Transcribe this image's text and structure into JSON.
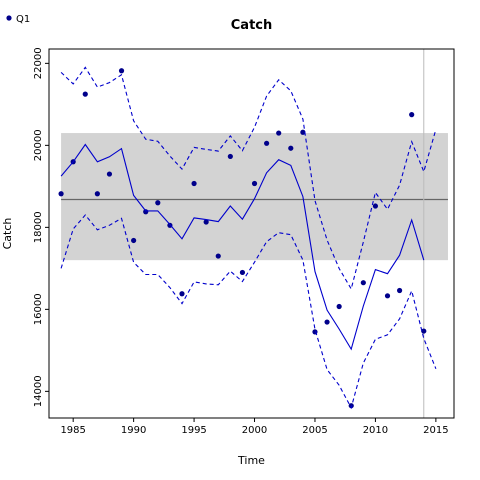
{
  "chart_data": {
    "type": "line",
    "title": "Catch",
    "xlabel": "Time",
    "ylabel": "Catch",
    "xlim": [
      1983,
      2016.5
    ],
    "ylim": [
      13350,
      22350
    ],
    "x_ticks": [
      1985,
      1990,
      1995,
      2000,
      2005,
      2010,
      2015
    ],
    "y_ticks": [
      14000,
      16000,
      18000,
      20000,
      22000
    ],
    "grid": false,
    "legend": {
      "position": "top-left",
      "entries": [
        "Q1"
      ]
    },
    "colors": {
      "series": "#0000cc",
      "points": "#00008b",
      "band": "#d3d3d3",
      "mean_line": "#666666",
      "vline": "#bbbbbb"
    },
    "band": {
      "x0": 1984,
      "x1": 2016,
      "lower": 17200,
      "upper": 20300
    },
    "mean_line": {
      "x0": 1984,
      "x1": 2016,
      "y": 18680
    },
    "vline_x": 2014,
    "series": [
      {
        "name": "Q1",
        "style": "points",
        "x": [
          1984,
          1985,
          1986,
          1987,
          1988,
          1989,
          1990,
          1991,
          1992,
          1993,
          1994,
          1995,
          1996,
          1997,
          1998,
          1999,
          2000,
          2001,
          2002,
          2003,
          2004,
          2005,
          2006,
          2007,
          2008,
          2009,
          2010,
          2011,
          2012,
          2013,
          2014
        ],
        "y": [
          18820,
          19600,
          21250,
          18820,
          19300,
          21820,
          17680,
          18380,
          18600,
          18050,
          16380,
          19070,
          18130,
          17300,
          19730,
          16900,
          19070,
          20050,
          20300,
          19930,
          20320,
          15450,
          15690,
          16070,
          13650,
          16650,
          18520,
          16330,
          16460,
          20750,
          15470
        ]
      },
      {
        "style": "solid",
        "x": [
          1984,
          1985,
          1986,
          1987,
          1988,
          1989,
          1990,
          1991,
          1992,
          1993,
          1994,
          1995,
          1996,
          1997,
          1998,
          1999,
          2000,
          2001,
          2002,
          2003,
          2004,
          2005,
          2006,
          2007,
          2008,
          2009,
          2010,
          2011,
          2012,
          2013,
          2014
        ],
        "y": [
          19250,
          19600,
          20020,
          19600,
          19720,
          19920,
          18780,
          18400,
          18400,
          18070,
          17720,
          18230,
          18190,
          18140,
          18520,
          18200,
          18700,
          19330,
          19650,
          19510,
          18750,
          16920,
          15980,
          15520,
          15030,
          16080,
          16970,
          16870,
          17320,
          18180,
          17200
        ]
      },
      {
        "style": "dashed",
        "x": [
          1984,
          1985,
          1986,
          1987,
          1988,
          1989,
          1990,
          1991,
          1992,
          1993,
          1994,
          1995,
          1996,
          1997,
          1998,
          1999,
          2000,
          2001,
          2002,
          2003,
          2004,
          2005,
          2006,
          2007,
          2008,
          2009,
          2010,
          2011,
          2012,
          2013,
          2014,
          2015
        ],
        "y": [
          21780,
          21500,
          21900,
          21420,
          21530,
          21720,
          20600,
          20150,
          20100,
          19740,
          19420,
          19950,
          19900,
          19860,
          20230,
          19870,
          20440,
          21200,
          21600,
          21330,
          20640,
          18650,
          17690,
          17000,
          16500,
          17640,
          18850,
          18440,
          19030,
          20090,
          19360,
          20390
        ]
      },
      {
        "style": "dashed",
        "x": [
          1984,
          1985,
          1986,
          1987,
          1988,
          1989,
          1990,
          1991,
          1992,
          1993,
          1994,
          1995,
          1996,
          1997,
          1998,
          1999,
          2000,
          2001,
          2002,
          2003,
          2004,
          2005,
          2006,
          2007,
          2008,
          2009,
          2010,
          2011,
          2012,
          2013,
          2014,
          2015
        ],
        "y": [
          17000,
          17960,
          18300,
          17940,
          18050,
          18220,
          17150,
          16850,
          16850,
          16530,
          16140,
          16670,
          16620,
          16600,
          16930,
          16680,
          17150,
          17650,
          17870,
          17820,
          17200,
          15510,
          14530,
          14150,
          13600,
          14690,
          15270,
          15380,
          15770,
          16450,
          15290,
          14550
        ]
      }
    ]
  }
}
